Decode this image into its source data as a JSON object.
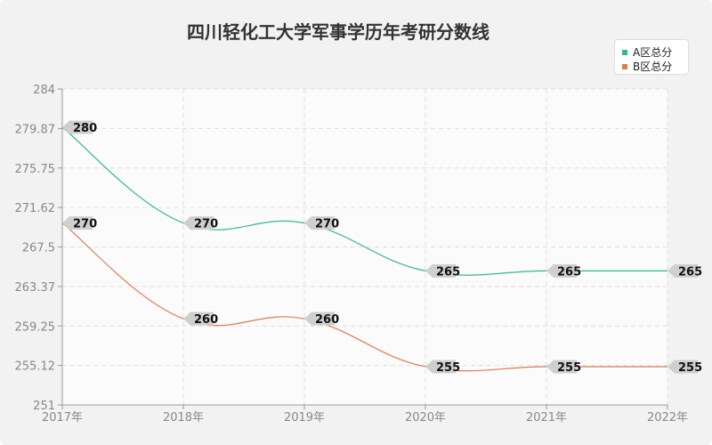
{
  "chart_data": {
    "type": "line",
    "title": "四川轻化工大学军事学历年考研分数线",
    "categories": [
      "2017年",
      "2018年",
      "2019年",
      "2020年",
      "2021年",
      "2022年"
    ],
    "y_ticks": [
      "284",
      "279.87",
      "275.75",
      "271.62",
      "267.5",
      "263.37",
      "259.25",
      "255.12",
      "251"
    ],
    "ylim": [
      251,
      284
    ],
    "grid": true,
    "legend_position": "top-right",
    "series": [
      {
        "name": "A区总分",
        "color": "#2fb98a",
        "values": [
          280,
          270,
          270,
          265,
          265,
          265
        ]
      },
      {
        "name": "B区总分",
        "color": "#e07a4f",
        "values": [
          270,
          260,
          260,
          255,
          255,
          255
        ]
      }
    ]
  }
}
